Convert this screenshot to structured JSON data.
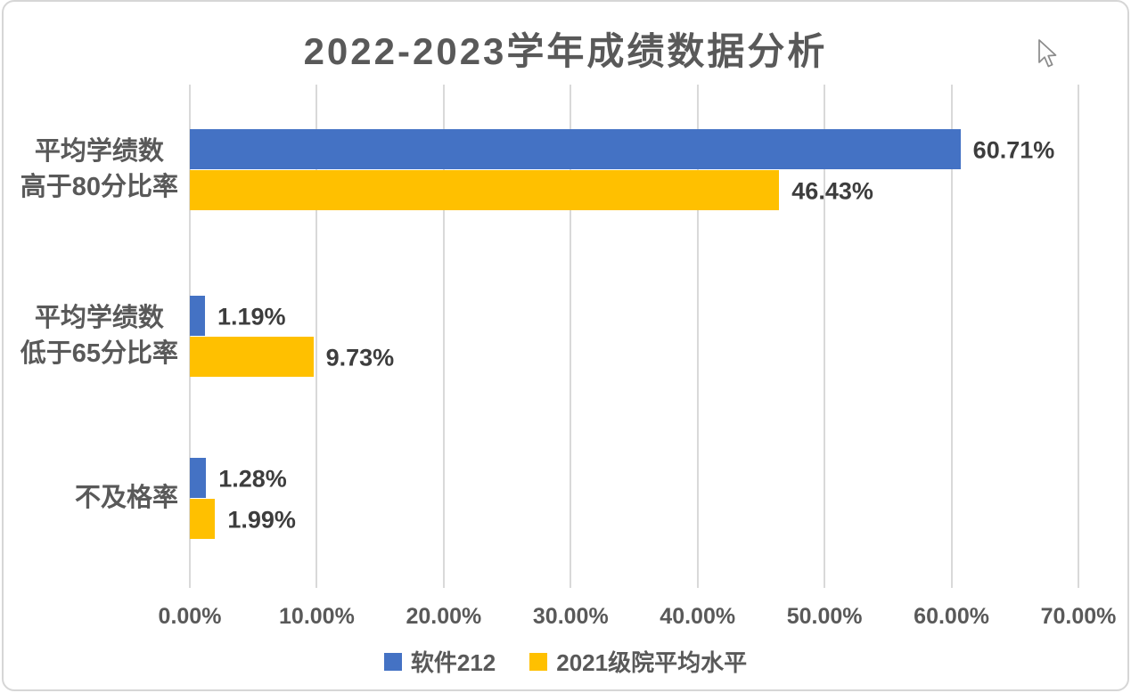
{
  "window": {
    "background": "#ffffff",
    "panel_border_color": "#d6d6d6"
  },
  "chart_data": {
    "type": "bar",
    "orientation": "horizontal",
    "title": "2022-2023学年成绩数据分析",
    "title_color": "#595959",
    "categories": [
      {
        "name": "平均学绩数高于80分比率",
        "lines": [
          "平均学绩数",
          "高于80分比率"
        ]
      },
      {
        "name": "平均学绩数低于65分比率",
        "lines": [
          "平均学绩数",
          "低于65分比率"
        ]
      },
      {
        "name": "不及格率",
        "lines": [
          "不及格率"
        ]
      }
    ],
    "series": [
      {
        "name": "软件212",
        "color": "#4472C4",
        "values": [
          60.71,
          1.19,
          1.28
        ],
        "labels": [
          "60.71%",
          "1.19%",
          "1.28%"
        ]
      },
      {
        "name": "2021级院平均水平",
        "color": "#FFC000",
        "values": [
          46.43,
          9.73,
          1.99
        ],
        "labels": [
          "46.43%",
          "9.73%",
          "1.99%"
        ]
      }
    ],
    "x_axis": {
      "min": 0,
      "max": 70,
      "ticks": [
        "0.00%",
        "10.00%",
        "20.00%",
        "30.00%",
        "40.00%",
        "50.00%",
        "60.00%",
        "70.00%"
      ],
      "gridlines": true,
      "gridline_color": "#d9d9d9"
    },
    "legend": {
      "position": "bottom"
    },
    "text_colors": {
      "category": "#595959",
      "tick": "#595959",
      "data_label": "#3d3d3d",
      "legend": "#595959"
    }
  },
  "cursor": {
    "icon": "mouse-pointer-icon"
  }
}
